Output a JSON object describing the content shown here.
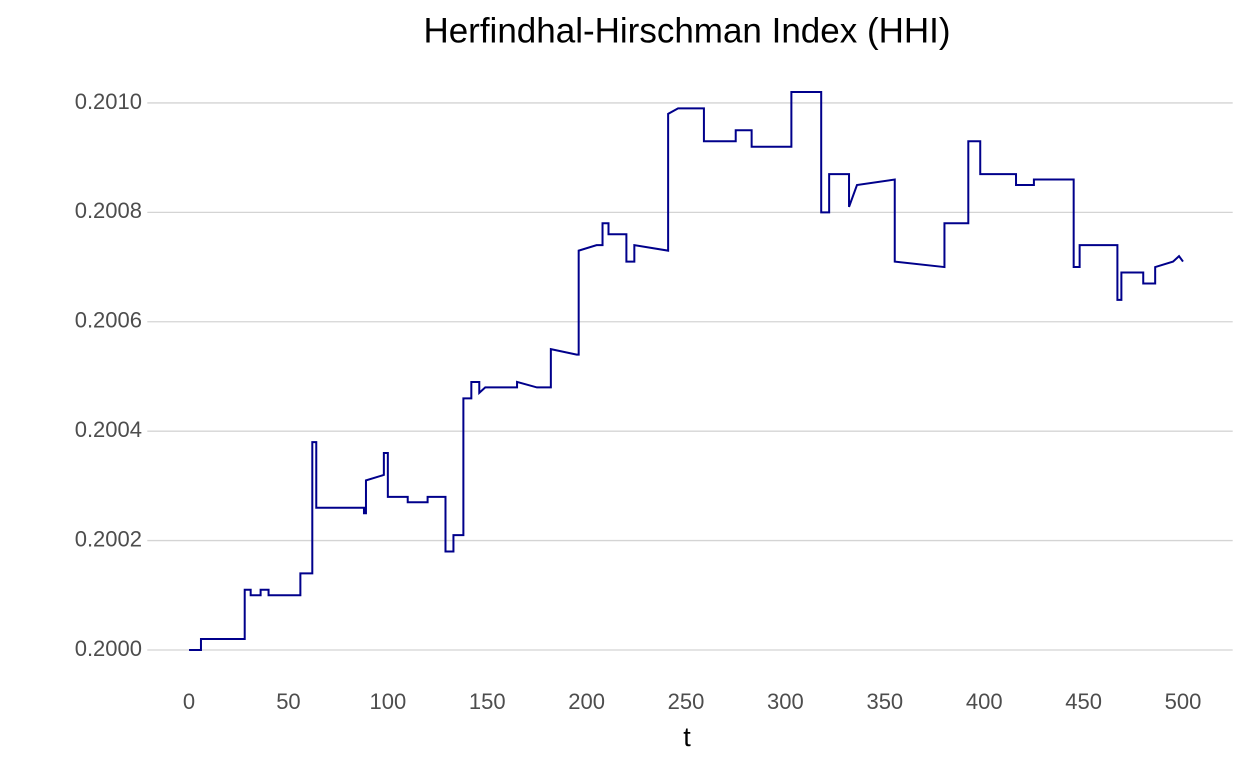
{
  "chart_data": {
    "type": "line",
    "title": "Herfindhal-Hirschman Index (HHI)",
    "x_label": "t",
    "x": [
      0,
      6,
      6,
      28,
      28,
      31,
      31,
      36,
      36,
      40,
      40,
      56,
      56,
      62,
      62,
      64,
      64,
      88,
      88,
      89,
      89,
      98,
      98,
      100,
      100,
      110,
      110,
      120,
      120,
      129,
      129,
      133,
      133,
      138,
      138,
      142,
      142,
      146,
      146,
      149,
      165,
      165,
      175,
      182,
      182,
      195,
      196,
      196,
      205,
      208,
      208,
      211,
      211,
      220,
      220,
      224,
      224,
      241,
      241,
      246,
      259,
      259,
      275,
      275,
      283,
      283,
      303,
      303,
      318,
      318,
      322,
      322,
      332,
      332,
      336,
      355,
      355,
      380,
      380,
      392,
      392,
      398,
      398,
      416,
      416,
      425,
      425,
      445,
      445,
      448,
      448,
      467,
      467,
      469,
      469,
      480,
      480,
      486,
      486,
      495,
      498,
      500
    ],
    "series": [
      {
        "name": "HHI",
        "color": "#00008b",
        "values": [
          0.2,
          0.2,
          0.20002,
          0.20002,
          0.20011,
          0.20011,
          0.2001,
          0.2001,
          0.20011,
          0.20011,
          0.2001,
          0.2001,
          0.20014,
          0.20014,
          0.20038,
          0.20038,
          0.20026,
          0.20026,
          0.20025,
          0.20025,
          0.20031,
          0.20032,
          0.20036,
          0.20036,
          0.20028,
          0.20028,
          0.20027,
          0.20027,
          0.20028,
          0.20028,
          0.20018,
          0.20018,
          0.20021,
          0.20021,
          0.20046,
          0.20046,
          0.20049,
          0.20049,
          0.20047,
          0.20048,
          0.20048,
          0.20049,
          0.20048,
          0.20048,
          0.20055,
          0.20054,
          0.20054,
          0.20073,
          0.20074,
          0.20074,
          0.20078,
          0.20078,
          0.20076,
          0.20076,
          0.20071,
          0.20071,
          0.20074,
          0.20073,
          0.20098,
          0.20099,
          0.20099,
          0.20093,
          0.20093,
          0.20095,
          0.20095,
          0.20092,
          0.20092,
          0.20102,
          0.20102,
          0.2008,
          0.2008,
          0.20087,
          0.20087,
          0.20081,
          0.20085,
          0.20086,
          0.20071,
          0.2007,
          0.20078,
          0.20078,
          0.20093,
          0.20093,
          0.20087,
          0.20087,
          0.20085,
          0.20085,
          0.20086,
          0.20086,
          0.2007,
          0.2007,
          0.20074,
          0.20074,
          0.20064,
          0.20064,
          0.20069,
          0.20069,
          0.20067,
          0.20067,
          0.2007,
          0.20071,
          0.20072,
          0.20071
        ]
      }
    ],
    "xlim": [
      -21,
      525
    ],
    "xticks": [
      0,
      50,
      100,
      150,
      200,
      250,
      300,
      350,
      400,
      450,
      500
    ],
    "ylim": [
      0.19997,
      0.20105
    ],
    "yticks": [
      {
        "value": 0.2,
        "label": "0.2000"
      },
      {
        "value": 0.2002,
        "label": "0.2002"
      },
      {
        "value": 0.2004,
        "label": "0.2004"
      },
      {
        "value": 0.2006,
        "label": "0.2006"
      },
      {
        "value": 0.2008,
        "label": "0.2008"
      },
      {
        "value": 0.201,
        "label": "0.2010"
      }
    ],
    "grid": true
  }
}
